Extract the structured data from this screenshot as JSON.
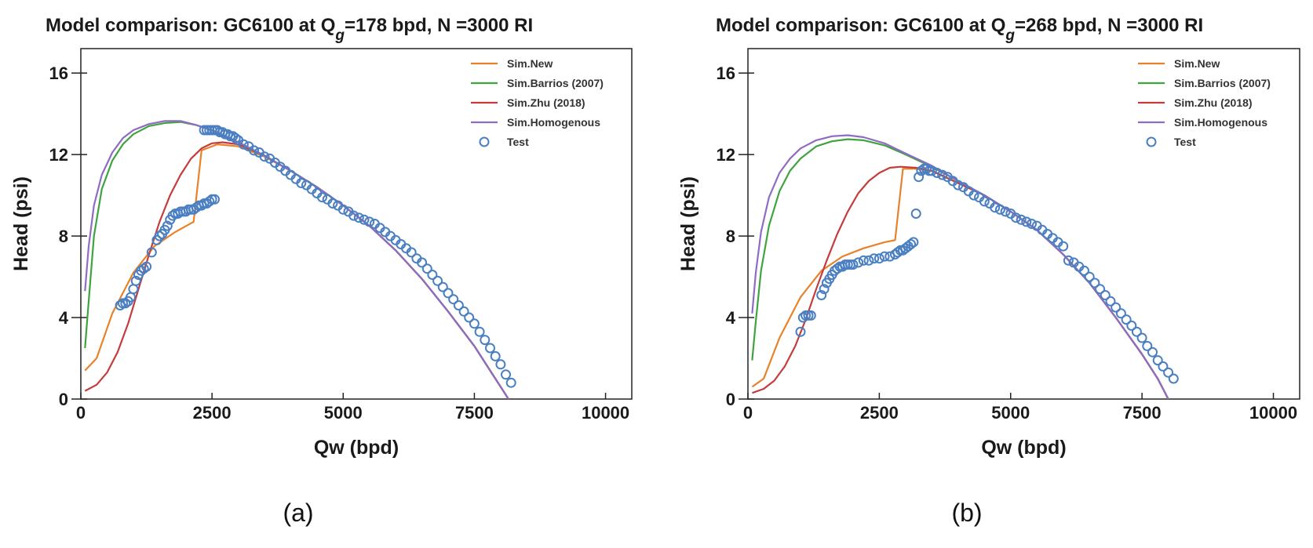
{
  "chart_data": [
    {
      "type": "line",
      "panel_label": "(a)",
      "title_prefix": "Model comparison: GC6100 at Q",
      "title_sub": "g",
      "title_suffix": "=178 bpd, N =3000 RI",
      "xlabel": "Qw (bpd)",
      "ylabel": "Head (psi)",
      "xlim": [
        0,
        10500
      ],
      "ylim": [
        0,
        17.2
      ],
      "xticks": [
        0,
        2500,
        5000,
        7500,
        10000
      ],
      "yticks": [
        0,
        4,
        8,
        12,
        16
      ],
      "grid": false,
      "legend_position": "top-right",
      "series": [
        {
          "name": "Sim.New",
          "color": "#e8822a",
          "kind": "line",
          "x": [
            80,
            300,
            600,
            1000,
            1400,
            1800,
            2150,
            2300,
            2600,
            3000,
            3500,
            4000,
            4500,
            5000,
            5500,
            6000,
            6500,
            7000,
            7500,
            7800,
            8000,
            8150
          ],
          "y": [
            1.4,
            2.0,
            4.2,
            6.2,
            7.5,
            8.2,
            8.7,
            12.2,
            12.5,
            12.4,
            11.9,
            11.2,
            10.4,
            9.5,
            8.5,
            7.3,
            5.9,
            4.3,
            2.6,
            1.4,
            0.6,
            0.0
          ]
        },
        {
          "name": "Sim.Barrios (2007)",
          "color": "#3fa33f",
          "kind": "line",
          "x": [
            80,
            150,
            250,
            400,
            600,
            800,
            1000,
            1300,
            1600,
            1900,
            2200,
            2600,
            3000,
            3500,
            4000,
            4500,
            5000,
            5500,
            6000,
            6500,
            7000,
            7500,
            7800,
            8000,
            8150
          ],
          "y": [
            2.5,
            4.8,
            8.0,
            10.3,
            11.7,
            12.5,
            13.0,
            13.4,
            13.55,
            13.6,
            13.45,
            13.1,
            12.6,
            11.95,
            11.2,
            10.4,
            9.5,
            8.5,
            7.3,
            5.9,
            4.3,
            2.6,
            1.4,
            0.6,
            0.0
          ]
        },
        {
          "name": "Sim.Zhu (2018)",
          "color": "#c43c3c",
          "kind": "line",
          "x": [
            80,
            300,
            500,
            700,
            900,
            1100,
            1300,
            1500,
            1700,
            1900,
            2100,
            2300,
            2500,
            2700,
            3000,
            3500,
            4000,
            4500,
            5000,
            5500,
            6000,
            6500,
            7000,
            7500,
            7800,
            8000,
            8150
          ],
          "y": [
            0.4,
            0.7,
            1.3,
            2.3,
            3.7,
            5.4,
            7.1,
            8.7,
            10.0,
            11.0,
            11.8,
            12.3,
            12.55,
            12.6,
            12.5,
            11.95,
            11.2,
            10.4,
            9.5,
            8.5,
            7.3,
            5.9,
            4.3,
            2.6,
            1.4,
            0.6,
            0.0
          ]
        },
        {
          "name": "Sim.Homogenous",
          "color": "#8e6cc4",
          "kind": "line",
          "x": [
            80,
            150,
            250,
            400,
            600,
            800,
            1000,
            1300,
            1600,
            1900,
            2200,
            2600,
            3000,
            3500,
            4000,
            4500,
            5000,
            5500,
            6000,
            6500,
            7000,
            7500,
            7800,
            8000,
            8150
          ],
          "y": [
            5.3,
            7.5,
            9.5,
            11.0,
            12.1,
            12.8,
            13.2,
            13.5,
            13.65,
            13.65,
            13.45,
            13.1,
            12.6,
            11.95,
            11.2,
            10.4,
            9.5,
            8.5,
            7.3,
            5.9,
            4.3,
            2.6,
            1.4,
            0.6,
            0.0
          ]
        },
        {
          "name": "Test",
          "color": "#4a7fc1",
          "kind": "scatter",
          "x": [
            750,
            800,
            850,
            900,
            950,
            1000,
            1050,
            1100,
            1150,
            1200,
            1250,
            1350,
            1450,
            1500,
            1550,
            1600,
            1650,
            1700,
            1750,
            1800,
            1850,
            1900,
            1950,
            2000,
            2050,
            2100,
            2150,
            2200,
            2250,
            2300,
            2350,
            2400,
            2450,
            2500,
            2550,
            2350,
            2400,
            2450,
            2500,
            2550,
            2600,
            2650,
            2700,
            2750,
            2800,
            2850,
            2900,
            2950,
            3000,
            3100,
            3200,
            3300,
            3400,
            3500,
            3600,
            3700,
            3800,
            3900,
            4000,
            4100,
            4200,
            4300,
            4400,
            4500,
            4600,
            4700,
            4800,
            4900,
            5000,
            5100,
            5200,
            5300,
            5400,
            5500,
            5600,
            5700,
            5800,
            5900,
            6000,
            6100,
            6200,
            6300,
            6400,
            6500,
            6600,
            6700,
            6800,
            6900,
            7000,
            7100,
            7200,
            7300,
            7400,
            7500,
            7600,
            7700,
            7800,
            7900,
            8000,
            8100,
            8200
          ],
          "y": [
            4.6,
            4.7,
            4.7,
            4.8,
            5.0,
            5.4,
            5.8,
            6.1,
            6.3,
            6.4,
            6.5,
            7.2,
            7.8,
            8.0,
            8.1,
            8.3,
            8.5,
            8.8,
            9.0,
            9.1,
            9.1,
            9.2,
            9.2,
            9.2,
            9.3,
            9.3,
            9.3,
            9.4,
            9.5,
            9.5,
            9.6,
            9.6,
            9.7,
            9.8,
            9.8,
            13.2,
            13.2,
            13.2,
            13.2,
            13.2,
            13.2,
            13.1,
            13.1,
            13.0,
            13.0,
            12.9,
            12.9,
            12.8,
            12.7,
            12.5,
            12.4,
            12.2,
            12.1,
            11.9,
            11.8,
            11.6,
            11.4,
            11.2,
            11.0,
            10.8,
            10.6,
            10.5,
            10.3,
            10.1,
            9.9,
            9.8,
            9.6,
            9.5,
            9.3,
            9.2,
            9.0,
            8.9,
            8.8,
            8.7,
            8.6,
            8.4,
            8.2,
            8.0,
            7.8,
            7.6,
            7.4,
            7.2,
            6.9,
            6.7,
            6.4,
            6.1,
            5.8,
            5.5,
            5.2,
            4.9,
            4.6,
            4.3,
            4.0,
            3.7,
            3.3,
            2.9,
            2.5,
            2.1,
            1.7,
            1.2,
            0.8
          ]
        }
      ]
    },
    {
      "type": "line",
      "panel_label": "(b)",
      "title_prefix": "Model comparison: GC6100 at Q",
      "title_sub": "g",
      "title_suffix": "=268 bpd, N =3000 RI",
      "xlabel": "Qw (bpd)",
      "ylabel": "Head (psi)",
      "xlim": [
        0,
        10500
      ],
      "ylim": [
        0,
        17.2
      ],
      "xticks": [
        0,
        2500,
        5000,
        7500,
        10000
      ],
      "yticks": [
        0,
        4,
        8,
        12,
        16
      ],
      "grid": false,
      "legend_position": "top-right",
      "series": [
        {
          "name": "Sim.New",
          "color": "#e8822a",
          "kind": "line",
          "x": [
            80,
            300,
            600,
            1000,
            1400,
            1800,
            2200,
            2600,
            2800,
            2950,
            3200,
            3500,
            4000,
            4500,
            5000,
            5500,
            6000,
            6500,
            7000,
            7500,
            7800,
            8000
          ],
          "y": [
            0.6,
            1.0,
            3.0,
            5.0,
            6.3,
            7.0,
            7.4,
            7.7,
            7.8,
            11.3,
            11.3,
            11.2,
            10.6,
            10.0,
            9.2,
            8.3,
            7.1,
            5.7,
            4.0,
            2.2,
            1.0,
            0.0
          ]
        },
        {
          "name": "Sim.Barrios (2007)",
          "color": "#3fa33f",
          "kind": "line",
          "x": [
            80,
            150,
            250,
            400,
            600,
            800,
            1000,
            1300,
            1600,
            1900,
            2200,
            2600,
            3000,
            3500,
            4000,
            4500,
            5000,
            5500,
            6000,
            6500,
            7000,
            7500,
            7800,
            8000
          ],
          "y": [
            1.9,
            3.8,
            6.3,
            8.5,
            10.2,
            11.2,
            11.8,
            12.4,
            12.65,
            12.75,
            12.7,
            12.45,
            12.0,
            11.4,
            10.7,
            10.0,
            9.2,
            8.3,
            7.1,
            5.7,
            4.0,
            2.2,
            1.0,
            0.0
          ]
        },
        {
          "name": "Sim.Zhu (2018)",
          "color": "#c43c3c",
          "kind": "line",
          "x": [
            80,
            300,
            500,
            700,
            900,
            1100,
            1300,
            1500,
            1700,
            1900,
            2100,
            2300,
            2500,
            2700,
            2900,
            3200,
            3500,
            4000,
            4500,
            5000,
            5500,
            6000,
            6500,
            7000,
            7500,
            7800,
            8000
          ],
          "y": [
            0.3,
            0.5,
            0.9,
            1.6,
            2.6,
            3.9,
            5.4,
            6.8,
            8.1,
            9.2,
            10.1,
            10.7,
            11.1,
            11.35,
            11.4,
            11.35,
            11.2,
            10.6,
            10.0,
            9.2,
            8.3,
            7.1,
            5.7,
            4.0,
            2.2,
            1.0,
            0.0
          ]
        },
        {
          "name": "Sim.Homogenous",
          "color": "#8e6cc4",
          "kind": "line",
          "x": [
            80,
            150,
            250,
            400,
            600,
            800,
            1000,
            1300,
            1600,
            1900,
            2200,
            2600,
            3000,
            3500,
            4000,
            4500,
            5000,
            5500,
            6000,
            6500,
            7000,
            7500,
            7800,
            8000
          ],
          "y": [
            4.2,
            6.2,
            8.2,
            9.9,
            11.1,
            11.8,
            12.3,
            12.7,
            12.9,
            12.95,
            12.85,
            12.55,
            12.05,
            11.45,
            10.7,
            10.0,
            9.2,
            8.3,
            7.1,
            5.7,
            4.0,
            2.2,
            1.0,
            0.0
          ]
        },
        {
          "name": "Test",
          "color": "#4a7fc1",
          "kind": "scatter",
          "x": [
            1000,
            1050,
            1100,
            1150,
            1200,
            1400,
            1450,
            1500,
            1550,
            1600,
            1650,
            1700,
            1750,
            1800,
            1850,
            1900,
            1950,
            2000,
            2100,
            2200,
            2300,
            2400,
            2500,
            2600,
            2700,
            2800,
            2850,
            2900,
            2950,
            3000,
            3050,
            3100,
            3150,
            3200,
            3250,
            3300,
            3350,
            3400,
            3450,
            3500,
            3600,
            3700,
            3800,
            3900,
            4000,
            4100,
            4200,
            4300,
            4400,
            4500,
            4600,
            4700,
            4800,
            4900,
            5000,
            5100,
            5200,
            5300,
            5400,
            5500,
            5600,
            5700,
            5800,
            5900,
            6000,
            6100,
            6200,
            6300,
            6400,
            6500,
            6600,
            6700,
            6800,
            6900,
            7000,
            7100,
            7200,
            7300,
            7400,
            7500,
            7600,
            7700,
            7800,
            7900,
            8000,
            8100
          ],
          "y": [
            3.3,
            4.0,
            4.1,
            4.1,
            4.1,
            5.1,
            5.4,
            5.7,
            5.9,
            6.1,
            6.3,
            6.4,
            6.5,
            6.5,
            6.6,
            6.6,
            6.6,
            6.6,
            6.7,
            6.8,
            6.8,
            6.9,
            6.9,
            7.0,
            7.0,
            7.1,
            7.2,
            7.3,
            7.3,
            7.4,
            7.5,
            7.6,
            7.7,
            9.1,
            10.9,
            11.2,
            11.3,
            11.3,
            11.2,
            11.2,
            11.1,
            11.0,
            10.9,
            10.7,
            10.5,
            10.4,
            10.2,
            10.0,
            9.9,
            9.7,
            9.6,
            9.4,
            9.3,
            9.2,
            9.1,
            8.9,
            8.8,
            8.7,
            8.6,
            8.5,
            8.3,
            8.1,
            7.9,
            7.7,
            7.5,
            6.8,
            6.7,
            6.5,
            6.3,
            6.0,
            5.7,
            5.4,
            5.1,
            4.8,
            4.5,
            4.2,
            3.9,
            3.6,
            3.3,
            3.0,
            2.6,
            2.3,
            1.9,
            1.6,
            1.3,
            1.0
          ]
        }
      ]
    }
  ]
}
